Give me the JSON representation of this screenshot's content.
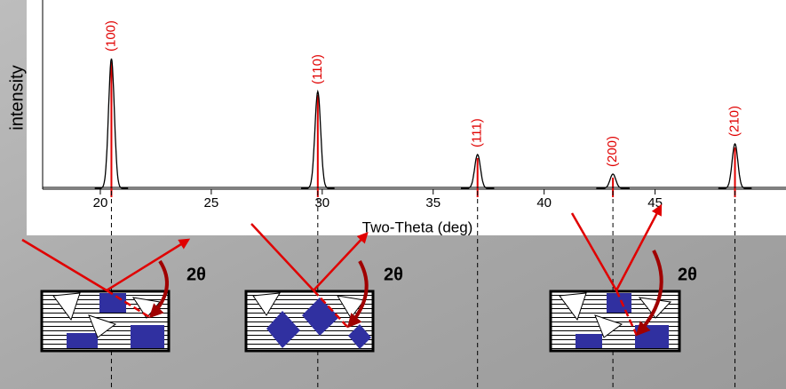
{
  "chart_data": {
    "type": "xrd",
    "x_label": "Two-Theta (deg)",
    "y_label": "intensity",
    "xlim": [
      17.4,
      50.9
    ],
    "xticks": [
      20,
      25,
      30,
      35,
      40,
      45
    ],
    "ylim": [
      0,
      212
    ],
    "peaks": {
      "labels": [
        "(100)",
        "(110)",
        "(111)",
        "(200)",
        "(210)"
      ],
      "x": [
        20.5,
        29.8,
        37.0,
        43.1,
        48.6
      ],
      "values": [
        146,
        109,
        38,
        16,
        50
      ]
    },
    "color": "#000000",
    "marker_color": "#e00000"
  },
  "diagram": {
    "angle_labels": [
      "2θ",
      "2θ",
      "2θ"
    ]
  }
}
